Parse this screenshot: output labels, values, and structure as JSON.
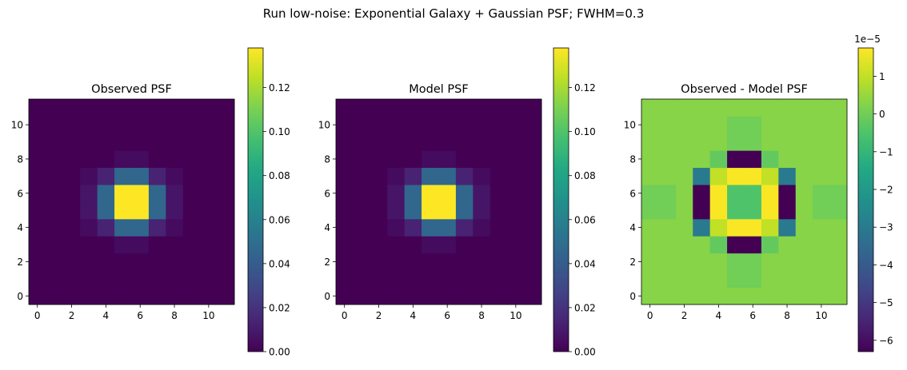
{
  "figure": {
    "suptitle": "Run low-noise: Exponential Galaxy + Gaussian PSF; FWHM=0.3"
  },
  "chart_data": [
    {
      "type": "heatmap",
      "title": "Observed PSF",
      "grid_size": 12,
      "x_ticks": [
        0,
        2,
        4,
        6,
        8,
        10
      ],
      "y_ticks": [
        0,
        2,
        4,
        6,
        8,
        10
      ],
      "xlim": [
        -0.5,
        11.5
      ],
      "ylim": [
        -0.5,
        11.5
      ],
      "colormap": "viridis",
      "vmin": 0.0,
      "vmax": 0.138,
      "colorbar_ticks": [
        0.0,
        0.02,
        0.04,
        0.06,
        0.08,
        0.1,
        0.12
      ],
      "colorbar_tick_labels": [
        "0.00",
        "0.02",
        "0.04",
        "0.06",
        "0.08",
        "0.10",
        "0.12"
      ],
      "values": [
        [
          0,
          0,
          0,
          0,
          0,
          0,
          0,
          0,
          0,
          0,
          0,
          0
        ],
        [
          0,
          0,
          0,
          0,
          0,
          0,
          0,
          0,
          0,
          0,
          0,
          0
        ],
        [
          0,
          0,
          0,
          0,
          0,
          0,
          0,
          0,
          0,
          0,
          0,
          0
        ],
        [
          0,
          0,
          0,
          0,
          0,
          0.004,
          0.004,
          0,
          0,
          0,
          0,
          0
        ],
        [
          0,
          0,
          0,
          0.004,
          0.013,
          0.046,
          0.046,
          0.013,
          0.004,
          0,
          0,
          0
        ],
        [
          0,
          0,
          0,
          0.008,
          0.046,
          0.138,
          0.138,
          0.046,
          0.008,
          0,
          0,
          0
        ],
        [
          0,
          0,
          0,
          0.008,
          0.046,
          0.138,
          0.138,
          0.046,
          0.008,
          0,
          0,
          0
        ],
        [
          0,
          0,
          0,
          0.004,
          0.013,
          0.046,
          0.046,
          0.013,
          0.004,
          0,
          0,
          0
        ],
        [
          0,
          0,
          0,
          0,
          0,
          0.004,
          0.004,
          0,
          0,
          0,
          0,
          0
        ],
        [
          0,
          0,
          0,
          0,
          0,
          0,
          0,
          0,
          0,
          0,
          0,
          0
        ],
        [
          0,
          0,
          0,
          0,
          0,
          0,
          0,
          0,
          0,
          0,
          0,
          0
        ],
        [
          0,
          0,
          0,
          0,
          0,
          0,
          0,
          0,
          0,
          0,
          0,
          0
        ]
      ]
    },
    {
      "type": "heatmap",
      "title": "Model PSF",
      "grid_size": 12,
      "x_ticks": [
        0,
        2,
        4,
        6,
        8,
        10
      ],
      "y_ticks": [
        0,
        2,
        4,
        6,
        8,
        10
      ],
      "xlim": [
        -0.5,
        11.5
      ],
      "ylim": [
        -0.5,
        11.5
      ],
      "colormap": "viridis",
      "vmin": 0.0,
      "vmax": 0.138,
      "colorbar_ticks": [
        0.0,
        0.02,
        0.04,
        0.06,
        0.08,
        0.1,
        0.12
      ],
      "colorbar_tick_labels": [
        "0.00",
        "0.02",
        "0.04",
        "0.06",
        "0.08",
        "0.10",
        "0.12"
      ],
      "values": [
        [
          0,
          0,
          0,
          0,
          0,
          0,
          0,
          0,
          0,
          0,
          0,
          0
        ],
        [
          0,
          0,
          0,
          0,
          0,
          0,
          0,
          0,
          0,
          0,
          0,
          0
        ],
        [
          0,
          0,
          0,
          0,
          0,
          0,
          0,
          0,
          0,
          0,
          0,
          0
        ],
        [
          0,
          0,
          0,
          0,
          0,
          0.004,
          0.004,
          0,
          0,
          0,
          0,
          0
        ],
        [
          0,
          0,
          0,
          0.004,
          0.013,
          0.046,
          0.046,
          0.013,
          0.004,
          0,
          0,
          0
        ],
        [
          0,
          0,
          0,
          0.008,
          0.046,
          0.138,
          0.138,
          0.046,
          0.008,
          0,
          0,
          0
        ],
        [
          0,
          0,
          0,
          0.008,
          0.046,
          0.138,
          0.138,
          0.046,
          0.008,
          0,
          0,
          0
        ],
        [
          0,
          0,
          0,
          0.004,
          0.013,
          0.046,
          0.046,
          0.013,
          0.004,
          0,
          0,
          0
        ],
        [
          0,
          0,
          0,
          0,
          0,
          0.004,
          0.004,
          0,
          0,
          0,
          0,
          0
        ],
        [
          0,
          0,
          0,
          0,
          0,
          0,
          0,
          0,
          0,
          0,
          0,
          0
        ],
        [
          0,
          0,
          0,
          0,
          0,
          0,
          0,
          0,
          0,
          0,
          0,
          0
        ],
        [
          0,
          0,
          0,
          0,
          0,
          0,
          0,
          0,
          0,
          0,
          0,
          0
        ]
      ]
    },
    {
      "type": "heatmap",
      "title": "Observed - Model PSF",
      "grid_size": 12,
      "x_ticks": [
        0,
        2,
        4,
        6,
        8,
        10
      ],
      "y_ticks": [
        0,
        2,
        4,
        6,
        8,
        10
      ],
      "xlim": [
        -0.5,
        11.5
      ],
      "ylim": [
        -0.5,
        11.5
      ],
      "colormap": "viridis",
      "vmin": -6.3,
      "vmax": 1.75,
      "colorbar_scale_label": "1e−5",
      "colorbar_ticks": [
        1,
        0,
        -1,
        -2,
        -3,
        -4,
        -5,
        -6
      ],
      "colorbar_tick_labels": [
        "1",
        "0",
        "−1",
        "−2",
        "−3",
        "−4",
        "−5",
        "−6"
      ],
      "values": [
        [
          0.3,
          0.3,
          0.3,
          0.3,
          0.3,
          0.3,
          0.3,
          0.3,
          0.3,
          0.3,
          0.3,
          0.3
        ],
        [
          0.3,
          0.3,
          0.3,
          0.3,
          0.3,
          0.0,
          0.0,
          0.3,
          0.3,
          0.3,
          0.3,
          0.3
        ],
        [
          0.3,
          0.3,
          0.3,
          0.3,
          0.3,
          0.0,
          0.0,
          0.3,
          0.3,
          0.3,
          0.3,
          0.3
        ],
        [
          0.3,
          0.3,
          0.3,
          0.3,
          -0.2,
          -6.3,
          -6.3,
          -0.2,
          0.3,
          0.3,
          0.3,
          0.3
        ],
        [
          0.3,
          0.3,
          0.3,
          -3.0,
          1.0,
          1.7,
          1.7,
          1.0,
          -3.0,
          0.3,
          0.3,
          0.3
        ],
        [
          0.0,
          0.0,
          0.3,
          -6.3,
          1.7,
          -0.5,
          -0.5,
          1.7,
          -6.3,
          0.3,
          0.0,
          0.0
        ],
        [
          0.0,
          0.0,
          0.3,
          -6.3,
          1.7,
          -0.5,
          -0.5,
          1.7,
          -6.3,
          0.3,
          0.0,
          0.0
        ],
        [
          0.3,
          0.3,
          0.3,
          -3.0,
          1.0,
          1.7,
          1.7,
          1.0,
          -3.0,
          0.3,
          0.3,
          0.3
        ],
        [
          0.3,
          0.3,
          0.3,
          0.3,
          -0.2,
          -6.3,
          -6.3,
          -0.2,
          0.3,
          0.3,
          0.3,
          0.3
        ],
        [
          0.3,
          0.3,
          0.3,
          0.3,
          0.3,
          0.0,
          0.0,
          0.3,
          0.3,
          0.3,
          0.3,
          0.3
        ],
        [
          0.3,
          0.3,
          0.3,
          0.3,
          0.3,
          0.0,
          0.0,
          0.3,
          0.3,
          0.3,
          0.3,
          0.3
        ],
        [
          0.3,
          0.3,
          0.3,
          0.3,
          0.3,
          0.3,
          0.3,
          0.3,
          0.3,
          0.3,
          0.3,
          0.3
        ]
      ]
    }
  ]
}
